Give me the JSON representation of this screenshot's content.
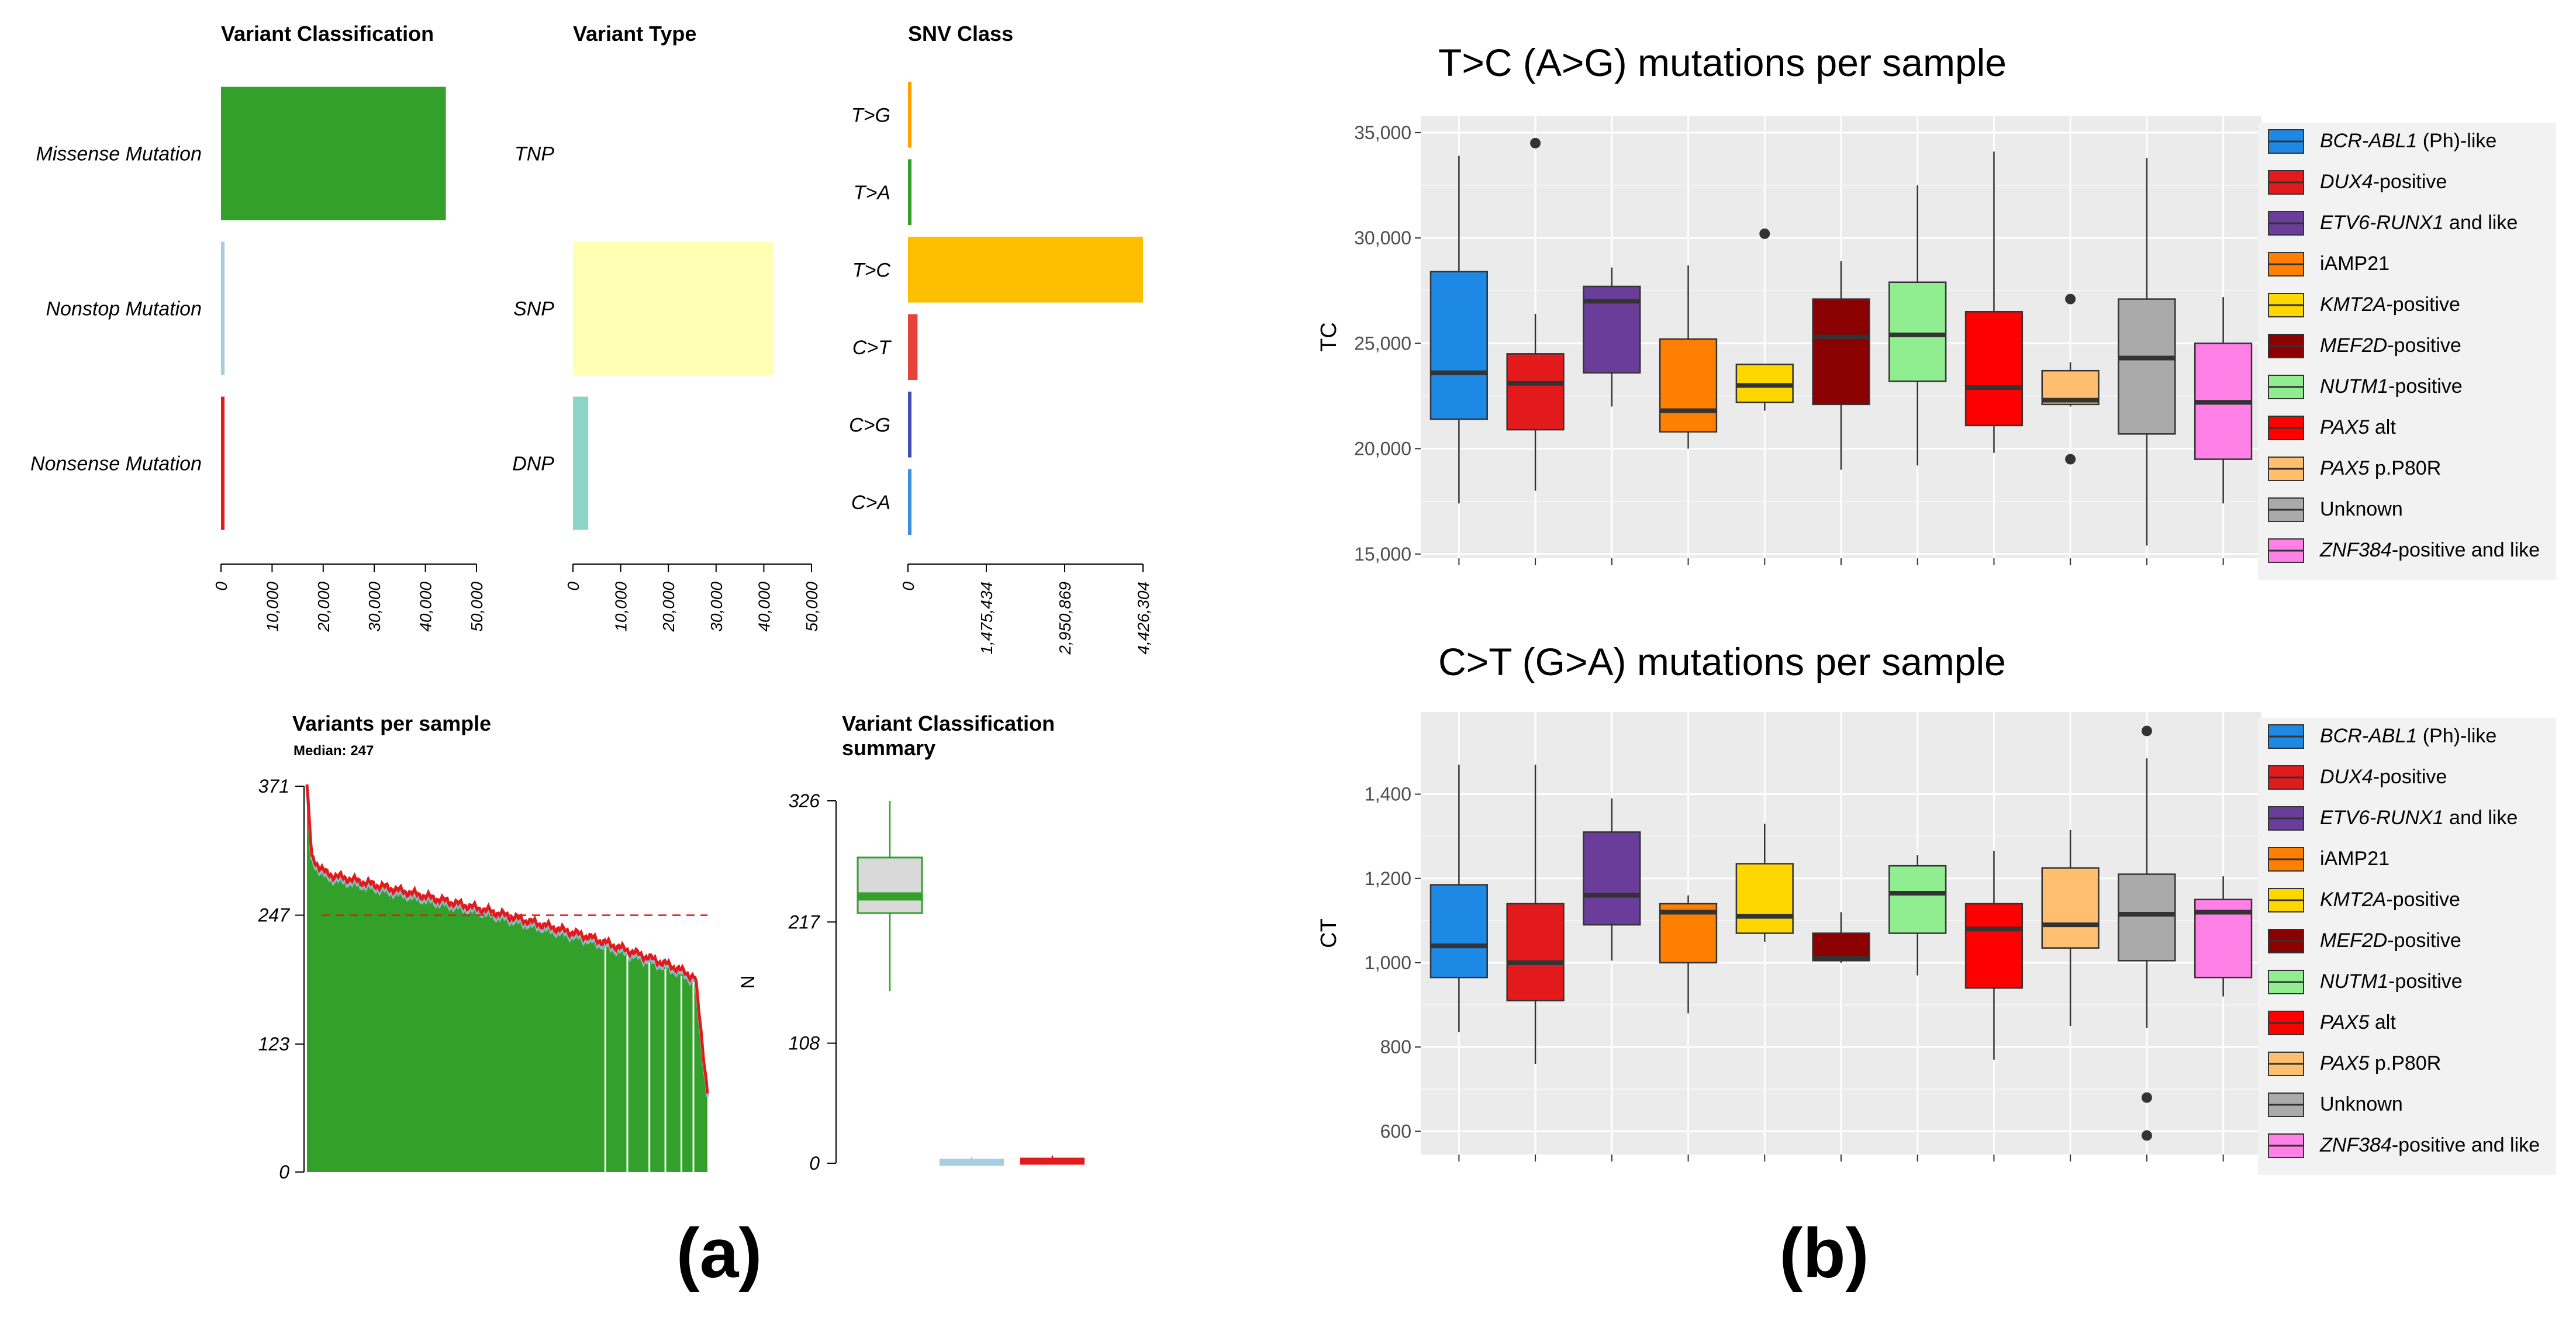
{
  "panel_labels": {
    "a": "(a)",
    "b": "(b)"
  },
  "colors": {
    "green": "#33a02c",
    "lightblue": "#a6cee3",
    "red": "#e31a1c",
    "yellow": "#ffffb3",
    "teal": "#8dd3c7",
    "ggbg": "#ebebeb",
    "snv": {
      "T>G": "#ff9f00",
      "T>A": "#33a02c",
      "T>C": "#fdbf00",
      "C>T": "#e8433a",
      "C>G": "#4050b0",
      "C>A": "#3a8ee0"
    },
    "groups": [
      "#1e88e5",
      "#e31a1c",
      "#6a3d9a",
      "#ff7f00",
      "#ffd700",
      "#8b0000",
      "#90ee90",
      "#ff0000",
      "#ffbf6e",
      "#aaaaaa",
      "#ff80e6"
    ]
  },
  "chart_data": [
    {
      "id": "variant-classification",
      "type": "bar",
      "orientation": "horizontal",
      "title": "Variant Classification",
      "categories": [
        "Missense Mutation",
        "Nonstop Mutation",
        "Nonsense Mutation"
      ],
      "values": [
        44000,
        700,
        500
      ],
      "xlim": [
        0,
        50000
      ],
      "ticks": [
        0,
        10000,
        20000,
        30000,
        40000,
        50000
      ],
      "tick_labels": [
        "0",
        "10,000",
        "20,000",
        "30,000",
        "40,000",
        "50,000"
      ]
    },
    {
      "id": "variant-type",
      "type": "bar",
      "orientation": "horizontal",
      "title": "Variant Type",
      "categories": [
        "TNP",
        "SNP",
        "DNP"
      ],
      "values": [
        0,
        42000,
        3200
      ],
      "xlim": [
        0,
        50000
      ],
      "ticks": [
        0,
        10000,
        20000,
        30000,
        40000,
        50000
      ],
      "tick_labels": [
        "0",
        "10,000",
        "20,000",
        "30,000",
        "40,000",
        "50,000"
      ]
    },
    {
      "id": "snv-class",
      "type": "bar",
      "orientation": "horizontal",
      "title": "SNV Class",
      "categories": [
        "T>G",
        "T>A",
        "T>C",
        "C>T",
        "C>G",
        "C>A"
      ],
      "values": [
        55000,
        50000,
        4426304,
        180000,
        60000,
        55000
      ],
      "xlim": [
        0,
        4426304
      ],
      "ticks": [
        0,
        1475434,
        2950869,
        4426304
      ],
      "tick_labels": [
        "0",
        "1,475,434",
        "2,950,869",
        "4,426,304"
      ]
    },
    {
      "id": "variants-per-sample",
      "type": "bar",
      "title": "Variants per sample",
      "subtitle": "Median: 247",
      "ylim": [
        0,
        371
      ],
      "yticks": [
        0,
        123,
        247,
        371
      ],
      "median": 247,
      "sample_profile": [
        [
          0,
          371
        ],
        [
          0.012,
          300
        ],
        [
          0.05,
          285
        ],
        [
          0.2,
          272
        ],
        [
          0.45,
          250
        ],
        [
          0.7,
          225
        ],
        [
          0.85,
          205
        ],
        [
          0.92,
          195
        ],
        [
          0.97,
          185
        ],
        [
          1.0,
          75
        ]
      ],
      "series": [
        {
          "name": "Missense Mutation"
        },
        {
          "name": "Nonstop Mutation"
        },
        {
          "name": "Nonsense Mutation"
        }
      ]
    },
    {
      "id": "variant-classification-summary",
      "type": "boxplot",
      "title": "Variant Classification\nsummary",
      "ylabel": "N",
      "ylim": [
        0,
        326
      ],
      "yticks": [
        0,
        108,
        217,
        326
      ],
      "boxes": [
        {
          "name": "Missense Mutation",
          "min": 155,
          "q1": 225,
          "median": 240,
          "q3": 275,
          "max": 326
        },
        {
          "name": "Nonstop Mutation",
          "min": 2,
          "q1": 2,
          "median": 2,
          "q3": 4,
          "max": 6
        },
        {
          "name": "Nonsense Mutation",
          "min": 2,
          "q1": 2,
          "median": 2,
          "q3": 5,
          "max": 7
        }
      ]
    },
    {
      "id": "tc-per-sample",
      "type": "boxplot",
      "title": "T>C (A>G) mutations per sample",
      "ylabel": "TC",
      "ylim": [
        14800,
        35800
      ],
      "yticks": [
        15000,
        20000,
        25000,
        30000,
        35000
      ],
      "ytick_labels": [
        "15,000",
        "20,000",
        "25,000",
        "30,000",
        "35,000"
      ],
      "groups": [
        {
          "min": 17400,
          "q1": 21400,
          "median": 23600,
          "q3": 28400,
          "max": 33900,
          "outliers": []
        },
        {
          "min": 18000,
          "q1": 20900,
          "median": 23100,
          "q3": 24500,
          "max": 26400,
          "outliers": [
            34500
          ]
        },
        {
          "min": 22000,
          "q1": 23600,
          "median": 27000,
          "q3": 27700,
          "max": 28600,
          "outliers": []
        },
        {
          "min": 20000,
          "q1": 20800,
          "median": 21800,
          "q3": 25200,
          "max": 28700,
          "outliers": []
        },
        {
          "min": 21800,
          "q1": 22200,
          "median": 23000,
          "q3": 24000,
          "max": 24000,
          "outliers": [
            30200
          ]
        },
        {
          "min": 19000,
          "q1": 22100,
          "median": 25300,
          "q3": 27100,
          "max": 28900,
          "outliers": []
        },
        {
          "min": 19200,
          "q1": 23200,
          "median": 25400,
          "q3": 27900,
          "max": 32500,
          "outliers": []
        },
        {
          "min": 19800,
          "q1": 21100,
          "median": 22900,
          "q3": 26500,
          "max": 34100,
          "outliers": []
        },
        {
          "min": 22000,
          "q1": 22100,
          "median": 22300,
          "q3": 23700,
          "max": 24100,
          "outliers": [
            27100,
            19500
          ]
        },
        {
          "min": 15400,
          "q1": 20700,
          "median": 24300,
          "q3": 27100,
          "max": 33800,
          "outliers": []
        },
        {
          "min": 17400,
          "q1": 19500,
          "median": 22200,
          "q3": 25000,
          "max": 27200,
          "outliers": []
        }
      ]
    },
    {
      "id": "ct-per-sample",
      "type": "boxplot",
      "title": "C>T (G>A) mutations per sample",
      "ylabel": "CT",
      "ylim": [
        545,
        1595
      ],
      "yticks": [
        600,
        800,
        1000,
        1200,
        1400
      ],
      "ytick_labels": [
        "600",
        "800",
        "1,000",
        "1,200",
        "1,400"
      ],
      "groups": [
        {
          "min": 835,
          "q1": 965,
          "median": 1040,
          "q3": 1185,
          "max": 1470,
          "outliers": []
        },
        {
          "min": 760,
          "q1": 910,
          "median": 1000,
          "q3": 1140,
          "max": 1470,
          "outliers": []
        },
        {
          "min": 1005,
          "q1": 1090,
          "median": 1160,
          "q3": 1310,
          "max": 1390,
          "outliers": []
        },
        {
          "min": 880,
          "q1": 1000,
          "median": 1120,
          "q3": 1140,
          "max": 1160,
          "outliers": []
        },
        {
          "min": 1050,
          "q1": 1070,
          "median": 1110,
          "q3": 1235,
          "max": 1330,
          "outliers": []
        },
        {
          "min": 1000,
          "q1": 1005,
          "median": 1010,
          "q3": 1070,
          "max": 1120,
          "outliers": []
        },
        {
          "min": 970,
          "q1": 1070,
          "median": 1165,
          "q3": 1230,
          "max": 1255,
          "outliers": []
        },
        {
          "min": 770,
          "q1": 940,
          "median": 1080,
          "q3": 1140,
          "max": 1265,
          "outliers": []
        },
        {
          "min": 850,
          "q1": 1035,
          "median": 1090,
          "q3": 1225,
          "max": 1315,
          "outliers": []
        },
        {
          "min": 845,
          "q1": 1005,
          "median": 1115,
          "q3": 1210,
          "max": 1485,
          "outliers": [
            1550,
            680,
            590
          ]
        },
        {
          "min": 920,
          "q1": 965,
          "median": 1120,
          "q3": 1150,
          "max": 1205,
          "outliers": []
        }
      ]
    }
  ],
  "legend": [
    {
      "italic": "BCR-ABL1",
      "rest": " (Ph)-like"
    },
    {
      "italic": "DUX4",
      "rest": "-positive"
    },
    {
      "italic": "ETV6-RUNX1",
      "rest": " and like"
    },
    {
      "italic": "",
      "rest": "iAMP21"
    },
    {
      "italic": "KMT2A",
      "rest": "-positive"
    },
    {
      "italic": "MEF2D",
      "rest": "-positive"
    },
    {
      "italic": "NUTM1",
      "rest": "-positive"
    },
    {
      "italic": "PAX5",
      "rest": " alt"
    },
    {
      "italic": "PAX5",
      "rest": " p.P80R"
    },
    {
      "italic": "",
      "rest": "Unknown"
    },
    {
      "italic": "ZNF384",
      "rest": "-positive and like"
    }
  ]
}
